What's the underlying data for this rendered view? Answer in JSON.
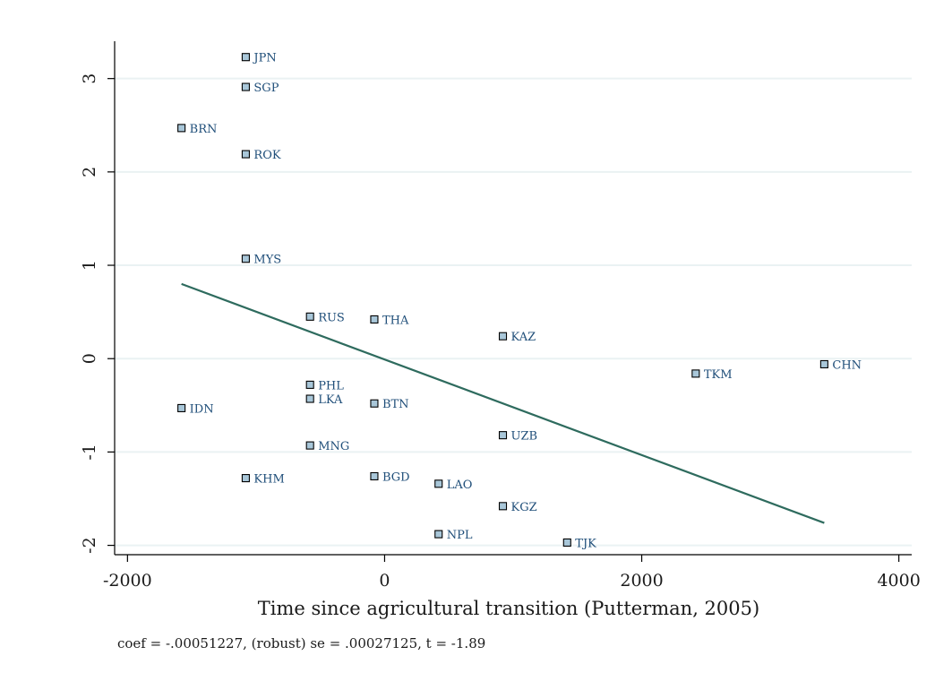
{
  "chart_data": {
    "type": "scatter",
    "title": "",
    "xlabel": "Time since agricultural transition (Putterman, 2005)",
    "ylabel": "",
    "note": "coef = -.00051227, (robust) se = .00027125, t = -1.89",
    "xlim": [
      -2100,
      4100
    ],
    "ylim": [
      -2.1,
      3.4
    ],
    "x_ticks": [
      -2000,
      0,
      2000,
      4000
    ],
    "x_tick_labels": [
      "-2000",
      "0",
      "2000",
      "4000"
    ],
    "y_ticks": [
      -2,
      -1,
      0,
      1,
      2,
      3
    ],
    "y_tick_labels": [
      "-2",
      "-1",
      "0",
      "1",
      "2",
      "3"
    ],
    "grid": "horizontal",
    "legend": "none",
    "points": [
      {
        "label": "JPN",
        "x": -1080,
        "y": 3.23
      },
      {
        "label": "SGP",
        "x": -1080,
        "y": 2.91
      },
      {
        "label": "BRN",
        "x": -1580,
        "y": 2.47
      },
      {
        "label": "ROK",
        "x": -1080,
        "y": 2.19
      },
      {
        "label": "MYS",
        "x": -1080,
        "y": 1.07
      },
      {
        "label": "RUS",
        "x": -580,
        "y": 0.45
      },
      {
        "label": "THA",
        "x": -80,
        "y": 0.42
      },
      {
        "label": "KAZ",
        "x": 920,
        "y": 0.24
      },
      {
        "label": "TKM",
        "x": 2420,
        "y": -0.16
      },
      {
        "label": "CHN",
        "x": 3420,
        "y": -0.06
      },
      {
        "label": "PHL",
        "x": -580,
        "y": -0.28
      },
      {
        "label": "LKA",
        "x": -580,
        "y": -0.43
      },
      {
        "label": "BTN",
        "x": -80,
        "y": -0.48
      },
      {
        "label": "IDN",
        "x": -1580,
        "y": -0.53
      },
      {
        "label": "UZB",
        "x": 920,
        "y": -0.82
      },
      {
        "label": "MNG",
        "x": -580,
        "y": -0.93
      },
      {
        "label": "KHM",
        "x": -1080,
        "y": -1.28
      },
      {
        "label": "BGD",
        "x": -80,
        "y": -1.26
      },
      {
        "label": "LAO",
        "x": 420,
        "y": -1.34
      },
      {
        "label": "KGZ",
        "x": 920,
        "y": -1.58
      },
      {
        "label": "NPL",
        "x": 420,
        "y": -1.88
      },
      {
        "label": "TJK",
        "x": 1420,
        "y": -1.97
      }
    ],
    "fit_line": {
      "x": [
        -1580,
        3420
      ],
      "y": [
        0.8,
        -1.76
      ]
    },
    "colors": {
      "marker_fill": "#a9c7d9",
      "marker_stroke": "#000000",
      "label": "#1f4e79",
      "fit_line": "#2e6b5e",
      "grid": "#eaf2f3",
      "axis": "#000000"
    }
  }
}
